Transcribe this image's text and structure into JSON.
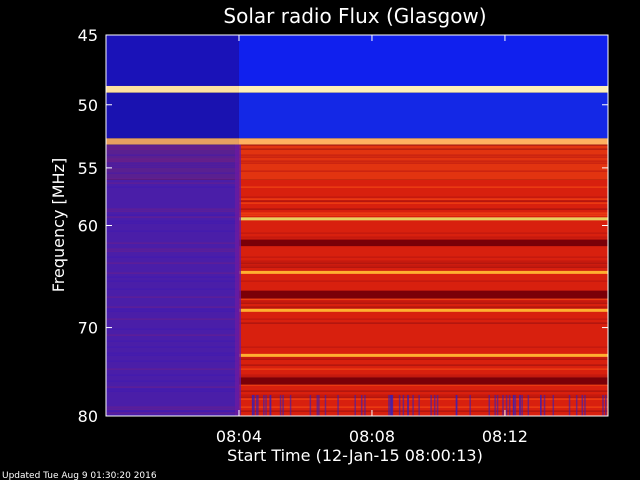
{
  "chart_data": {
    "type": "heatmap",
    "title": "Solar radio Flux (Glasgow)",
    "xlabel": "Start Time (12-Jan-15 08:00:13)",
    "ylabel": "Frequency [MHz]",
    "x_range_minutes": [
      0.0,
      15.1
    ],
    "y_range_mhz": [
      45,
      80
    ],
    "y_scale": "log",
    "y_ticks": [
      {
        "value": 45,
        "label": "45"
      },
      {
        "value": 50,
        "label": "50"
      },
      {
        "value": 55,
        "label": "55"
      },
      {
        "value": 60,
        "label": "60"
      },
      {
        "value": 70,
        "label": "70"
      },
      {
        "value": 80,
        "label": "80"
      }
    ],
    "x_ticks": [
      {
        "value": 4.0,
        "label": "08:04"
      },
      {
        "value": 8.0,
        "label": "08:08"
      },
      {
        "value": 12.0,
        "label": "08:12"
      }
    ],
    "transition_time_min": 4.0,
    "bands_mhz": [
      {
        "lo": 45,
        "hi": 48.6,
        "before": "#1a12b8",
        "after": "#1020ee"
      },
      {
        "lo": 48.6,
        "hi": 49.1,
        "before": "#ffe2a0",
        "after": "#fff0b8"
      },
      {
        "lo": 49.1,
        "hi": 52.6,
        "before": "#1a12b0",
        "after": "#1428e6"
      },
      {
        "lo": 52.6,
        "hi": 53.1,
        "before": "#e8a060",
        "after": "#ffb060"
      },
      {
        "lo": 53.1,
        "hi": 56.0,
        "before": "#5a2090",
        "after": "#e23410"
      },
      {
        "lo": 56.0,
        "hi": 80,
        "before": "#4a1ea8",
        "after": "#d8200e"
      }
    ],
    "bright_lines_mhz": [
      59.4,
      64.4,
      68.2,
      73.0
    ],
    "colors": {
      "background": "#000000",
      "text": "#ffffff"
    }
  },
  "footer": {
    "updated": "Updated Tue Aug  9 01:30:20 2016"
  }
}
